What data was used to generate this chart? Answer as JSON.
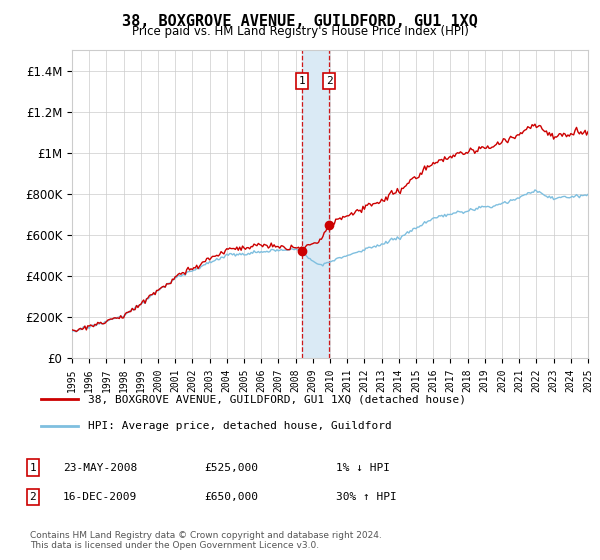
{
  "title": "38, BOXGROVE AVENUE, GUILDFORD, GU1 1XQ",
  "subtitle": "Price paid vs. HM Land Registry's House Price Index (HPI)",
  "legend_line1": "38, BOXGROVE AVENUE, GUILDFORD, GU1 1XQ (detached house)",
  "legend_line2": "HPI: Average price, detached house, Guildford",
  "transaction1_date": "23-MAY-2008",
  "transaction1_price": 525000,
  "transaction1_hpi": "1% ↓ HPI",
  "transaction2_date": "16-DEC-2009",
  "transaction2_price": 650000,
  "transaction2_hpi": "30% ↑ HPI",
  "footer": "Contains HM Land Registry data © Crown copyright and database right 2024.\nThis data is licensed under the Open Government Licence v3.0.",
  "hpi_color": "#7fbfdf",
  "price_color": "#cc0000",
  "shading_color": "#daeaf5",
  "background_color": "#ffffff",
  "grid_color": "#cccccc",
  "ylim": [
    0,
    1500000
  ],
  "yticks": [
    0,
    200000,
    400000,
    600000,
    800000,
    1000000,
    1200000,
    1400000
  ],
  "ytick_labels": [
    "£0",
    "£200K",
    "£400K",
    "£600K",
    "£800K",
    "£1M",
    "£1.2M",
    "£1.4M"
  ],
  "xstart": 1995,
  "xend": 2025,
  "t1_year": 2008.38,
  "t2_year": 2009.96
}
